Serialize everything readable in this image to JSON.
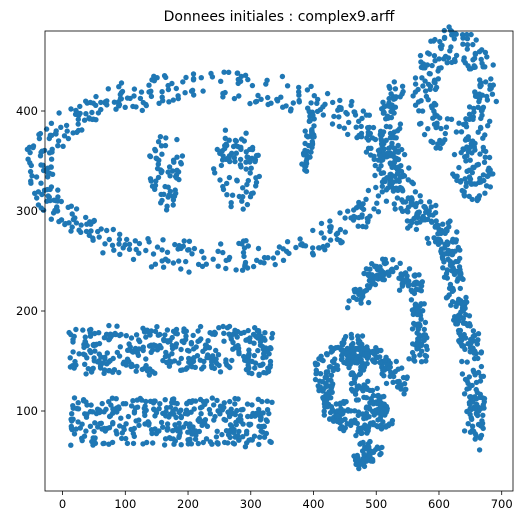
{
  "chart_data": {
    "type": "scatter",
    "title": "Donnees initiales : complex9.arff",
    "xlabel": "",
    "ylabel": "",
    "xlim": [
      -28,
      718
    ],
    "ylim": [
      20,
      480
    ],
    "xticks": [
      0,
      100,
      200,
      300,
      400,
      500,
      600,
      700
    ],
    "yticks": [
      100,
      200,
      300,
      400
    ],
    "grid": false,
    "legend": "none",
    "marker_color": "#1f77b4",
    "clusters": [
      {
        "name": "",
        "shape": "ellipse-ring",
        "cx": 240,
        "cy": 340,
        "rx_outer": 300,
        "ry_outer": 100,
        "rx_inner": 255,
        "ry_inner": 70,
        "n": 520
      },
      {
        "name": "",
        "shape": "ellipse",
        "cx": 165,
        "cy": 338,
        "rx": 28,
        "ry": 40,
        "n": 60
      },
      {
        "name": "",
        "shape": "ellipse",
        "cx": 278,
        "cy": 342,
        "rx": 38,
        "ry": 42,
        "n": 80
      },
      {
        "name": "",
        "shape": "rect",
        "x": [
          12,
          333
        ],
        "y": [
          138,
          185
        ],
        "n": 340
      },
      {
        "name": "",
        "shape": "rect",
        "x": [
          12,
          333
        ],
        "y": [
          65,
          112
        ],
        "n": 340
      },
      {
        "name": "",
        "shape": "ring",
        "cx": 625,
        "cy": 420,
        "r_outer": 65,
        "r_inner": 30,
        "n": 200
      },
      {
        "name": "",
        "shape": "ellipse",
        "cx": 655,
        "cy": 340,
        "rx": 30,
        "ry": 30,
        "n": 70
      },
      {
        "name": "",
        "shape": "curve",
        "points": [
          [
            530,
            430
          ],
          [
            518,
            360
          ],
          [
            552,
            305
          ],
          [
            618,
            270
          ],
          [
            630,
            200
          ],
          [
            660,
            140
          ],
          [
            655,
            75
          ]
        ],
        "width": 32,
        "n": 420
      },
      {
        "name": "",
        "shape": "curve",
        "points": [
          [
            400,
            395
          ],
          [
            385,
            340
          ]
        ],
        "width": 14,
        "n": 40
      },
      {
        "name": "",
        "shape": "curve",
        "points": [
          [
            520,
            95
          ],
          [
            470,
            85
          ],
          [
            425,
            105
          ],
          [
            410,
            150
          ]
        ],
        "width": 24,
        "n": 170
      },
      {
        "name": "",
        "shape": "curve",
        "points": [
          [
            430,
            145
          ],
          [
            470,
            170
          ],
          [
            470,
            125
          ],
          [
            510,
            100
          ]
        ],
        "width": 24,
        "n": 150
      },
      {
        "name": "",
        "shape": "curve",
        "points": [
          [
            470,
            50
          ],
          [
            500,
            65
          ]
        ],
        "width": 22,
        "n": 60
      },
      {
        "name": "",
        "shape": "curve",
        "points": [
          [
            460,
            208
          ],
          [
            510,
            245
          ],
          [
            560,
            225
          ],
          [
            575,
            170
          ],
          [
            560,
            150
          ]
        ],
        "width": 22,
        "n": 180
      },
      {
        "name": "",
        "shape": "curve",
        "points": [
          [
            475,
            160
          ],
          [
            510,
            150
          ],
          [
            545,
            125
          ]
        ],
        "width": 20,
        "n": 80
      }
    ]
  }
}
